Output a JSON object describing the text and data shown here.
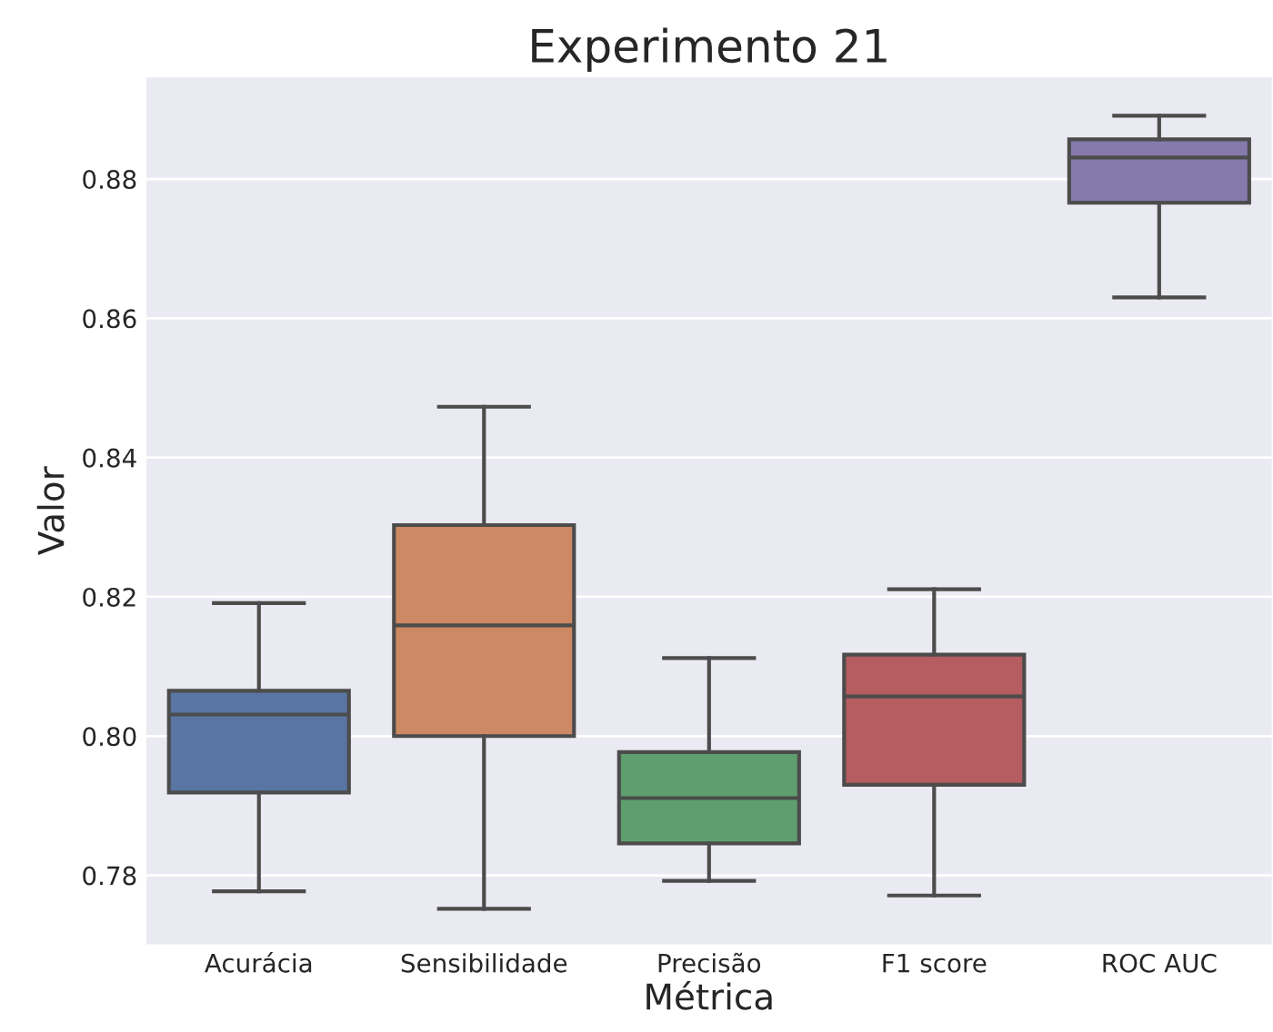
{
  "chart_data": {
    "type": "box",
    "title": "Experimento 21",
    "xlabel": "Métrica",
    "ylabel": "Valor",
    "categories": [
      "Acurácia",
      "Sensibilidade",
      "Precisão",
      "F1 score",
      "ROC AUC"
    ],
    "colors": [
      "#5975a4",
      "#cc8963",
      "#5f9e6e",
      "#b55d60",
      "#857aab"
    ],
    "boxes": [
      {
        "low": 0.7777,
        "q1": 0.7919,
        "median": 0.8031,
        "q3": 0.8065,
        "high": 0.8191
      },
      {
        "low": 0.7752,
        "q1": 0.8,
        "median": 0.8159,
        "q3": 0.8303,
        "high": 0.8473
      },
      {
        "low": 0.7792,
        "q1": 0.7846,
        "median": 0.7911,
        "q3": 0.7977,
        "high": 0.8112
      },
      {
        "low": 0.7771,
        "q1": 0.793,
        "median": 0.8057,
        "q3": 0.8117,
        "high": 0.8211
      },
      {
        "low": 0.863,
        "q1": 0.8766,
        "median": 0.8831,
        "q3": 0.8857,
        "high": 0.8891
      }
    ],
    "ylim": [
      0.7701,
      0.8946
    ],
    "yticks": [
      0.78,
      {
        "value": 0.8,
        "label": "0.80"
      },
      0.82,
      0.84,
      0.86,
      0.88
    ],
    "grid": "y"
  }
}
